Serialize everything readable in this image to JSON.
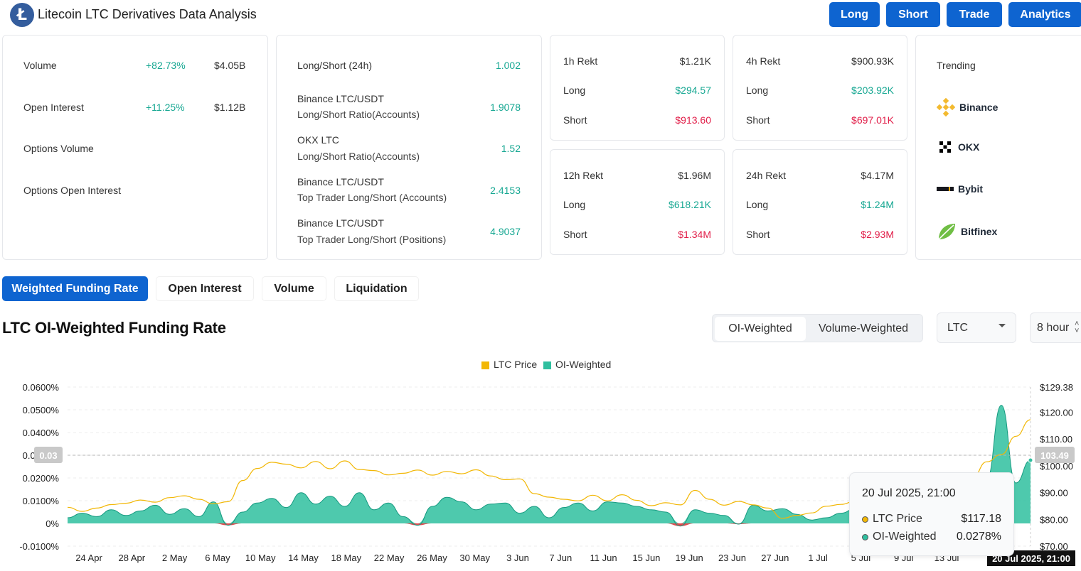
{
  "header": {
    "logo": "Ł",
    "title": "Litecoin LTC Derivatives Data Analysis",
    "buttons": [
      "Long",
      "Short",
      "Trade",
      "Analytics"
    ]
  },
  "summary": {
    "rows": [
      {
        "label": "Volume",
        "change": "+82.73%",
        "value": "$4.05B"
      },
      {
        "label": "Open Interest",
        "change": "+11.25%",
        "value": "$1.12B"
      },
      {
        "label": "Options Volume",
        "change": "",
        "value": ""
      },
      {
        "label": "Options Open Interest",
        "change": "",
        "value": ""
      }
    ]
  },
  "ratios": {
    "rows": [
      {
        "line1": "Long/Short (24h)",
        "line2": "",
        "value": "1.002"
      },
      {
        "line1": "Binance LTC/USDT",
        "line2": "Long/Short Ratio(Accounts)",
        "value": "1.9078"
      },
      {
        "line1": "OKX LTC",
        "line2": "Long/Short Ratio(Accounts)",
        "value": "1.52"
      },
      {
        "line1": "Binance LTC/USDT",
        "line2": "Top Trader Long/Short (Accounts)",
        "value": "2.4153"
      },
      {
        "line1": "Binance LTC/USDT",
        "line2": "Top Trader Long/Short (Positions)",
        "value": "4.9037"
      }
    ]
  },
  "rekt": [
    {
      "title": "1h Rekt",
      "total": "$1.21K",
      "long_label": "Long",
      "long": "$294.57",
      "short_label": "Short",
      "short": "$913.60"
    },
    {
      "title": "4h Rekt",
      "total": "$900.93K",
      "long_label": "Long",
      "long": "$203.92K",
      "short_label": "Short",
      "short": "$697.01K"
    },
    {
      "title": "12h Rekt",
      "total": "$1.96M",
      "long_label": "Long",
      "long": "$618.21K",
      "short_label": "Short",
      "short": "$1.34M"
    },
    {
      "title": "24h Rekt",
      "total": "$4.17M",
      "long_label": "Long",
      "long": "$1.24M",
      "short_label": "Short",
      "short": "$2.93M"
    }
  ],
  "trending": {
    "title": "Trending",
    "items": [
      {
        "name": "Binance",
        "icon": "binance-icon",
        "color": "#f3ba2f"
      },
      {
        "name": "OKX",
        "icon": "okx-icon",
        "color": "#000000"
      },
      {
        "name": "Bybit",
        "icon": "bybit-icon",
        "color": "#17181e"
      },
      {
        "name": "Bitfinex",
        "icon": "bitfinex-icon",
        "color": "#6fbe44"
      }
    ]
  },
  "tabs": [
    "Weighted Funding Rate",
    "Open Interest",
    "Volume",
    "Liquidation"
  ],
  "chart_header": {
    "title": "LTC OI-Weighted Funding Rate",
    "segments": [
      "OI-Weighted",
      "Volume-Weighted"
    ],
    "coin": "LTC",
    "interval": "8 hour"
  },
  "colors": {
    "accent": "#0e64d0",
    "price": "#f2b705",
    "funding_pos": "#2fbf9f",
    "funding_neg": "#e5484d"
  },
  "tooltip": {
    "date": "20 Jul 2025, 21:00",
    "price_label": "LTC Price",
    "price": "$117.18",
    "funding_label": "OI-Weighted",
    "funding": "0.0278%"
  },
  "crosshair": {
    "left_value": "0.03",
    "right_value": "103.49",
    "x_label": "20 Jul 2025, 21:00"
  },
  "chart_data": {
    "type": "line",
    "legend": [
      "LTC Price",
      "OI-Weighted"
    ],
    "legend_position": "top-center",
    "x_ticks": [
      "24 Apr",
      "28 Apr",
      "2 May",
      "6 May",
      "10 May",
      "14 May",
      "18 May",
      "22 May",
      "26 May",
      "30 May",
      "3 Jun",
      "7 Jun",
      "11 Jun",
      "15 Jun",
      "19 Jun",
      "23 Jun",
      "27 Jun",
      "1 Jul",
      "5 Jul",
      "9 Jul",
      "13 Jul"
    ],
    "y_left_ticks": [
      "0.0600%",
      "0.0500%",
      "0.0400%",
      "0.0300%",
      "0.0200%",
      "0.0100%",
      "0%",
      "-0.0100%"
    ],
    "y_left_range": [
      -0.01,
      0.06
    ],
    "y_right_ticks": [
      "$129.38",
      "$120.00",
      "$110.00",
      "$100.00",
      "$90.00",
      "$80.00",
      "$70.00"
    ],
    "y_right_range": [
      70,
      129.38
    ],
    "series": [
      {
        "name": "OI-Weighted",
        "unit": "%",
        "values": [
          0.0025,
          0.0045,
          0.003,
          0.006,
          0.0035,
          0.0055,
          0.008,
          0.004,
          0.0065,
          0.003,
          0.0095,
          -0.0008,
          0.005,
          0.009,
          0.011,
          0.007,
          0.0135,
          0.0085,
          0.012,
          0.0075,
          0.0135,
          0.006,
          0.009,
          0.003,
          -0.0008,
          0.0075,
          0.0115,
          0.0095,
          0.006,
          0.0085,
          0.009,
          0.0045,
          0.0075,
          0.0025,
          0.007,
          0.009,
          0.0055,
          0.0095,
          0.009,
          0.0075,
          0.006,
          0.005,
          -0.0012,
          0.006,
          0.0045,
          0.0035,
          -0.0003,
          0.008,
          0.0055,
          0.0065,
          0.004,
          0.0015,
          0.0025,
          0.0045,
          0.0065,
          0.006,
          0.0055,
          0.007,
          0.0045,
          0.0065,
          0.004,
          0.0095,
          0.0075,
          0.0195,
          0.052,
          0.0178,
          0.0278
        ]
      },
      {
        "name": "LTC Price",
        "unit": "$",
        "values": [
          84.5,
          83.0,
          84.2,
          85.5,
          86.0,
          87.2,
          86.4,
          88.1,
          88.8,
          87.5,
          85.8,
          86.6,
          94.5,
          99.0,
          101.3,
          100.6,
          99.2,
          101.6,
          98.9,
          101.8,
          98.6,
          98.2,
          96.6,
          97.2,
          98.4,
          96.5,
          97.9,
          97.0,
          98.5,
          96.2,
          94.8,
          95.1,
          89.6,
          88.3,
          87.5,
          86.9,
          89.0,
          86.9,
          89.2,
          87.1,
          85.1,
          86.2,
          85.4,
          90.8,
          87.5,
          85.3,
          86.7,
          85.4,
          84.2,
          80.4,
          81.5,
          82.4,
          84.9,
          85.6,
          86.8,
          87.1,
          87.8,
          86.3,
          88.9,
          89.6,
          90.7,
          92.9,
          95.3,
          101.5,
          104.2,
          111.0,
          117.18
        ]
      }
    ]
  }
}
